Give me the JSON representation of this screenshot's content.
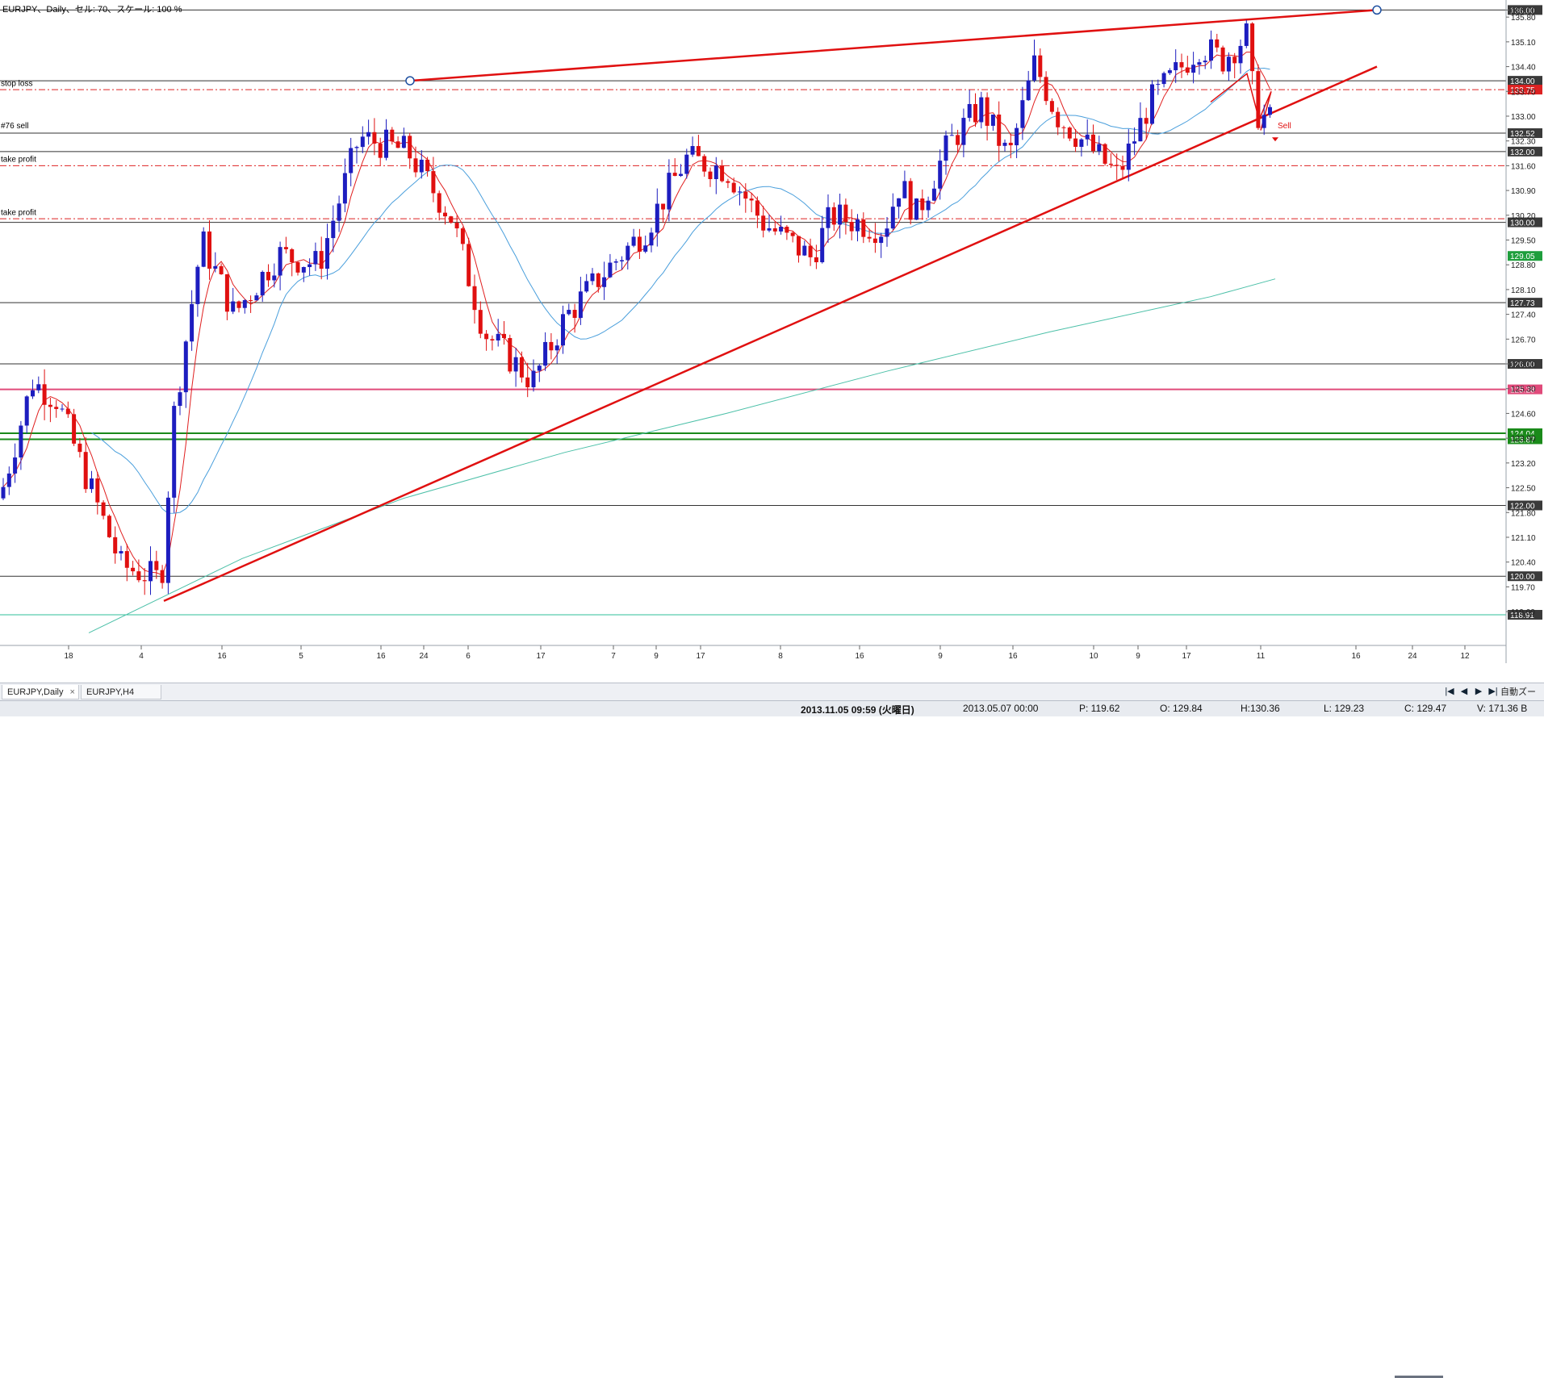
{
  "chart_header": "EURJPY、Daily、セル: 70、スケール: 100 %",
  "chart_data": {
    "type": "candlestick",
    "symbol": "EURJPY",
    "timeframe": "Daily",
    "ylim": [
      118.3,
      136.3
    ],
    "price_ticks": [
      "136.00",
      "135.80",
      "135.10",
      "134.40",
      "133.70",
      "133.00",
      "132.30",
      "131.60",
      "130.90",
      "130.20",
      "129.50",
      "128.80",
      "128.10",
      "127.40",
      "126.70",
      "126.00",
      "125.30",
      "124.60",
      "123.90",
      "123.20",
      "122.50",
      "121.80",
      "121.10",
      "120.40",
      "119.70",
      "119.00"
    ],
    "date_ticks": [
      "18",
      "4",
      "16",
      "5",
      "16",
      "24",
      "6",
      "17",
      "7",
      "9",
      "17",
      "8",
      "16",
      "9",
      "16",
      "10",
      "9",
      "17",
      "11",
      "16",
      "24",
      "12"
    ],
    "horizontal_levels": [
      {
        "price": 136.0,
        "label": "136.00",
        "color": "#333333",
        "line": "solid"
      },
      {
        "price": 134.0,
        "label": "134.00",
        "color": "#333333",
        "line": "solid"
      },
      {
        "price": 133.75,
        "label": "133.75",
        "color": "#dd2222",
        "line": "dashdot"
      },
      {
        "price": 132.52,
        "label": "132.52",
        "color": "#333333",
        "line": "solid"
      },
      {
        "price": 132.0,
        "label": "132.00",
        "color": "#333333",
        "line": "solid"
      },
      {
        "price": 131.6,
        "label": "",
        "color": "#dd2222",
        "line": "dashdot"
      },
      {
        "price": 130.1,
        "label": "",
        "color": "#dd2222",
        "line": "dashdot"
      },
      {
        "price": 130.0,
        "label": "130.00",
        "color": "#333333",
        "line": "solid"
      },
      {
        "price": 129.05,
        "label": "129.05",
        "color": "#1e9e3c",
        "line": "none"
      },
      {
        "price": 127.73,
        "label": "127.73",
        "color": "#333333",
        "line": "solid"
      },
      {
        "price": 126.0,
        "label": "126.00",
        "color": "#333333",
        "line": "solid"
      },
      {
        "price": 125.28,
        "label": "125.28",
        "color": "#e04a7a",
        "line": "thick"
      },
      {
        "price": 124.04,
        "label": "124.04",
        "color": "#1a8a1a",
        "line": "thick"
      },
      {
        "price": 123.87,
        "label": "123.87",
        "color": "#1a8a1a",
        "line": "thick"
      },
      {
        "price": 122.0,
        "label": "122.00",
        "color": "#333333",
        "line": "solid"
      },
      {
        "price": 120.0,
        "label": "120.00",
        "color": "#333333",
        "line": "solid"
      },
      {
        "price": 118.91,
        "label": "118.91",
        "color": "#2fbf9a",
        "line": "solid"
      }
    ],
    "order_labels": [
      {
        "text": "stop loss",
        "price": 133.95
      },
      {
        "text": "#76 sell",
        "price": 132.75
      },
      {
        "text": "take profit",
        "price": 131.8
      },
      {
        "text": "take profit",
        "price": 130.3
      }
    ],
    "sell_marker": "Sell",
    "colors": {
      "up": "#1d1dbf",
      "down": "#e01010",
      "ma_fast": "#e02020",
      "ma_mid": "#4a9fdc",
      "ma_slow": "#4cc0a8",
      "trendline": "#e01010"
    }
  },
  "tabs": [
    {
      "label": "EURJPY,Daily",
      "close": "×"
    },
    {
      "label": "EURJPY,H4"
    }
  ],
  "navigation": {
    "first": "|◀",
    "prev": "◀",
    "next": "▶",
    "last": "▶|",
    "zoom_label": "自動ズーム"
  },
  "status": {
    "datetime": "2013.11.05 09:59 (火曜日)",
    "bar_date": "2013.05.07 00:00",
    "p": "P: 119.62",
    "o": "O: 129.84",
    "h": "H:130.36",
    "l": "L: 129.23",
    "c": "C: 129.47",
    "v": "V: 171.36 B"
  }
}
